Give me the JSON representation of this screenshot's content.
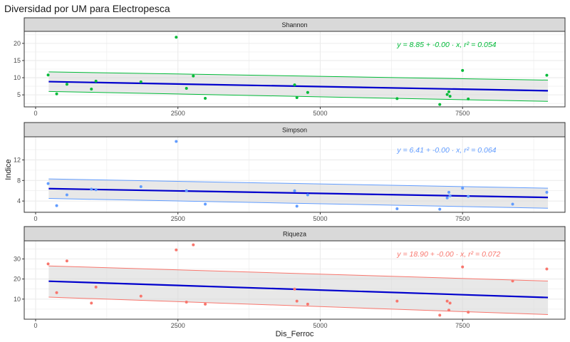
{
  "title": "Diversidad por UM para Electropesca",
  "chart_data": {
    "type": "scatter",
    "title": "Diversidad por UM para Electropesca",
    "xlabel": "Dis_Ferroc",
    "ylabel": "Indice",
    "xlim": [
      -200,
      9300
    ],
    "x_ticks": [
      0,
      2500,
      5000,
      7500
    ],
    "x_tick_labels": [
      "0",
      "2500",
      "5000",
      "7500"
    ],
    "grid": true,
    "fit_line_color": "#0000CD",
    "panel_strip_color": "#D9D9D9",
    "panel_background": "#FFFFFF",
    "grid_color": "#EBEBEB",
    "ci_fill": "#D9D9D9",
    "panels": [
      {
        "name": "Shannon",
        "color": "#00BA38",
        "ylim": [
          1.5,
          23.5
        ],
        "y_ticks": [
          5,
          10,
          15,
          20
        ],
        "y_tick_labels": [
          "5",
          "10",
          "15",
          "20"
        ],
        "equation": "y = 8.85 + -0.00 · x,  r² = 0.054",
        "fit": {
          "x0": 230,
          "y0": 8.85,
          "x1": 9000,
          "y1": 6.2
        },
        "ci_upper": {
          "x0": 230,
          "y0": 11.7,
          "x1": 9000,
          "y1": 9.3
        },
        "ci_lower": {
          "x0": 230,
          "y0": 6.0,
          "x1": 9000,
          "y1": 3.1
        },
        "points": [
          {
            "x": 220,
            "y": 10.8
          },
          {
            "x": 370,
            "y": 5.3
          },
          {
            "x": 550,
            "y": 8.1
          },
          {
            "x": 980,
            "y": 6.7
          },
          {
            "x": 1060,
            "y": 9.0
          },
          {
            "x": 1850,
            "y": 8.8
          },
          {
            "x": 2470,
            "y": 21.8
          },
          {
            "x": 2650,
            "y": 6.9
          },
          {
            "x": 2770,
            "y": 10.5
          },
          {
            "x": 2980,
            "y": 4.0
          },
          {
            "x": 4550,
            "y": 7.9
          },
          {
            "x": 4590,
            "y": 4.2
          },
          {
            "x": 4780,
            "y": 5.7
          },
          {
            "x": 6350,
            "y": 3.9
          },
          {
            "x": 7100,
            "y": 2.2
          },
          {
            "x": 7230,
            "y": 5.1
          },
          {
            "x": 7260,
            "y": 5.9
          },
          {
            "x": 7280,
            "y": 4.6
          },
          {
            "x": 7500,
            "y": 12.1
          },
          {
            "x": 7600,
            "y": 3.8
          },
          {
            "x": 8980,
            "y": 10.7
          }
        ]
      },
      {
        "name": "Simpson",
        "color": "#619CFF",
        "ylim": [
          1.8,
          16.5
        ],
        "y_ticks": [
          4,
          8,
          12
        ],
        "y_tick_labels": [
          "4",
          "8",
          "12"
        ],
        "equation": "y = 6.41 + -0.00 · x,  r² = 0.064",
        "fit": {
          "x0": 230,
          "y0": 6.41,
          "x1": 9000,
          "y1": 4.7
        },
        "ci_upper": {
          "x0": 230,
          "y0": 8.3,
          "x1": 9000,
          "y1": 6.5
        },
        "ci_lower": {
          "x0": 230,
          "y0": 4.5,
          "x1": 9000,
          "y1": 2.6
        },
        "points": [
          {
            "x": 220,
            "y": 7.4
          },
          {
            "x": 370,
            "y": 3.1
          },
          {
            "x": 550,
            "y": 5.2
          },
          {
            "x": 980,
            "y": 6.3
          },
          {
            "x": 1060,
            "y": 6.2
          },
          {
            "x": 1850,
            "y": 6.8
          },
          {
            "x": 2470,
            "y": 15.6
          },
          {
            "x": 2650,
            "y": 6.0
          },
          {
            "x": 2980,
            "y": 3.4
          },
          {
            "x": 4550,
            "y": 6.0
          },
          {
            "x": 4590,
            "y": 3.0
          },
          {
            "x": 4780,
            "y": 5.2
          },
          {
            "x": 6350,
            "y": 2.5
          },
          {
            "x": 7100,
            "y": 2.4
          },
          {
            "x": 7230,
            "y": 4.6
          },
          {
            "x": 7260,
            "y": 5.7
          },
          {
            "x": 7280,
            "y": 5.0
          },
          {
            "x": 7500,
            "y": 6.5
          },
          {
            "x": 7600,
            "y": 4.9
          },
          {
            "x": 8380,
            "y": 3.4
          },
          {
            "x": 8980,
            "y": 5.7
          }
        ]
      },
      {
        "name": "Riqueza",
        "color": "#F8766D",
        "ylim": [
          0,
          39
        ],
        "y_ticks": [
          10,
          20,
          30
        ],
        "y_tick_labels": [
          "10",
          "20",
          "30"
        ],
        "equation": "y = 18.90 + -0.00 · x,  r² = 0.072",
        "fit": {
          "x0": 230,
          "y0": 18.9,
          "x1": 9000,
          "y1": 10.8
        },
        "ci_upper": {
          "x0": 230,
          "y0": 26.5,
          "x1": 9000,
          "y1": 19.0
        },
        "ci_lower": {
          "x0": 230,
          "y0": 11.0,
          "x1": 9000,
          "y1": 2.3
        },
        "points": [
          {
            "x": 220,
            "y": 27.5
          },
          {
            "x": 370,
            "y": 13.2
          },
          {
            "x": 550,
            "y": 29.0
          },
          {
            "x": 980,
            "y": 8.0
          },
          {
            "x": 1060,
            "y": 16.0
          },
          {
            "x": 1850,
            "y": 11.5
          },
          {
            "x": 2470,
            "y": 34.5
          },
          {
            "x": 2650,
            "y": 8.5
          },
          {
            "x": 2770,
            "y": 37.0
          },
          {
            "x": 2980,
            "y": 7.5
          },
          {
            "x": 4550,
            "y": 15.0
          },
          {
            "x": 4590,
            "y": 9.0
          },
          {
            "x": 4780,
            "y": 7.5
          },
          {
            "x": 6350,
            "y": 9.0
          },
          {
            "x": 7100,
            "y": 2.0
          },
          {
            "x": 7230,
            "y": 9.0
          },
          {
            "x": 7260,
            "y": 4.5
          },
          {
            "x": 7280,
            "y": 8.0
          },
          {
            "x": 7500,
            "y": 26.0
          },
          {
            "x": 7600,
            "y": 3.5
          },
          {
            "x": 8380,
            "y": 19.0
          },
          {
            "x": 8980,
            "y": 25.0
          }
        ]
      }
    ]
  }
}
